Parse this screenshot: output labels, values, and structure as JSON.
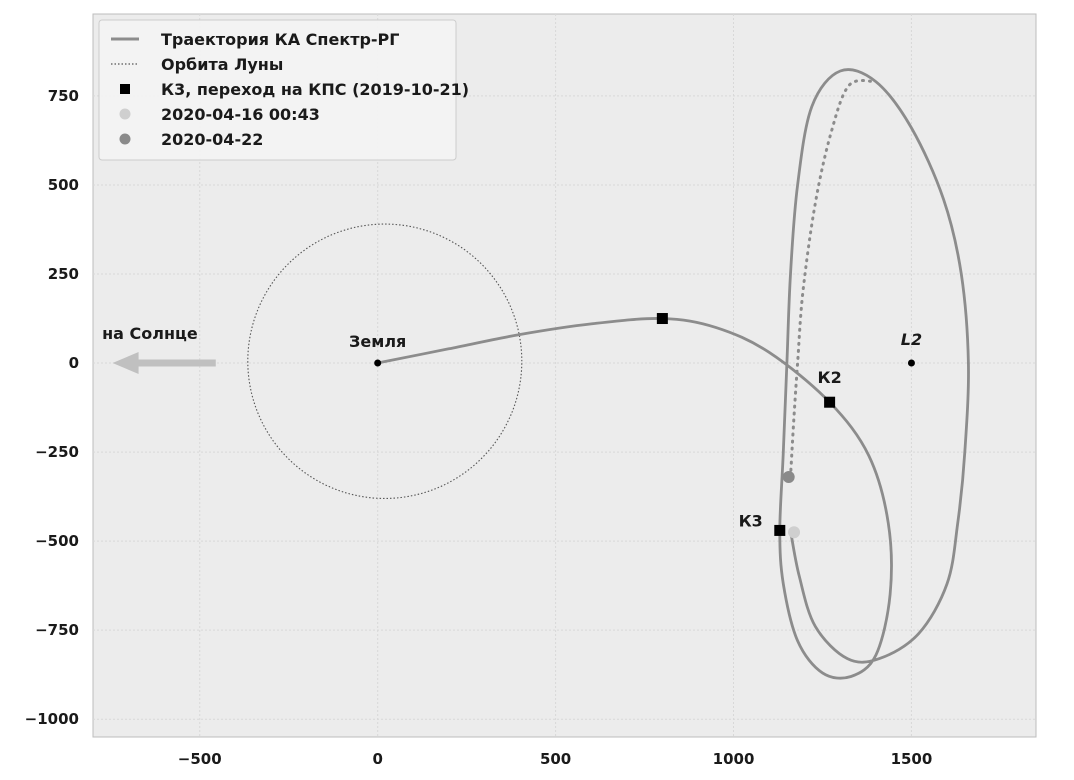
{
  "chart_data": {
    "type": "line",
    "xlim": [
      -800,
      1850
    ],
    "ylim": [
      -1050,
      980
    ],
    "xticks": [
      -500,
      0,
      500,
      1000,
      1500
    ],
    "yticks": [
      750,
      500,
      250,
      0,
      -250,
      -500,
      -750,
      -1000
    ],
    "xtick_labels": [
      "−500",
      "0",
      "500",
      "1000",
      "1500"
    ],
    "ytick_labels": [
      "750",
      "500",
      "250",
      "0",
      "−250",
      "−500",
      "−750",
      "−1000"
    ],
    "grid": true,
    "legend_position": "top-left",
    "colors": {
      "background": "#ececec",
      "trajectory": "#8c8c8c",
      "moon_orbit": "#555555",
      "arrow": "#c0c0c0",
      "light_point": "#cfcfcf",
      "dark_point": "#8a8a8a",
      "marker": "#000000"
    },
    "legend": [
      {
        "label": "Траектория КА Спектр-РГ",
        "style": "solid-line"
      },
      {
        "label": "Орбита Луны",
        "style": "dotted-line"
      },
      {
        "label": "К3, переход на КПС (2019-10-21)",
        "style": "black-square"
      },
      {
        "label": "2020-04-16 00:43",
        "style": "light-circle"
      },
      {
        "label": "2020-04-22",
        "style": "dark-circle"
      }
    ],
    "moon_orbit": {
      "center": [
        20,
        5
      ],
      "radius": 385
    },
    "trajectory": [
      [
        0,
        0
      ],
      [
        200,
        40
      ],
      [
        400,
        80
      ],
      [
        600,
        110
      ],
      [
        800,
        125
      ],
      [
        950,
        100
      ],
      [
        1100,
        30
      ],
      [
        1270,
        -110
      ],
      [
        1380,
        -260
      ],
      [
        1435,
        -450
      ],
      [
        1440,
        -650
      ],
      [
        1400,
        -820
      ],
      [
        1330,
        -880
      ],
      [
        1250,
        -870
      ],
      [
        1180,
        -780
      ],
      [
        1140,
        -620
      ],
      [
        1130,
        -470
      ],
      [
        1140,
        -250
      ],
      [
        1150,
        0
      ],
      [
        1160,
        250
      ],
      [
        1180,
        500
      ],
      [
        1220,
        720
      ],
      [
        1300,
        820
      ],
      [
        1400,
        790
      ],
      [
        1500,
        660
      ],
      [
        1590,
        460
      ],
      [
        1640,
        250
      ],
      [
        1660,
        0
      ],
      [
        1650,
        -250
      ],
      [
        1630,
        -450
      ],
      [
        1600,
        -620
      ],
      [
        1520,
        -760
      ],
      [
        1410,
        -830
      ],
      [
        1320,
        -830
      ],
      [
        1230,
        -740
      ],
      [
        1185,
        -600
      ],
      [
        1160,
        -470
      ]
    ],
    "dotted_segment": [
      [
        1160,
        -320
      ],
      [
        1170,
        -150
      ],
      [
        1180,
        0
      ],
      [
        1195,
        200
      ],
      [
        1230,
        450
      ],
      [
        1275,
        650
      ],
      [
        1325,
        780
      ],
      [
        1400,
        790
      ]
    ],
    "markers": [
      {
        "x": 800,
        "y": 125
      },
      {
        "x": 1270,
        "y": -110
      },
      {
        "x": 1130,
        "y": -470
      }
    ],
    "light_point": {
      "x": 1170,
      "y": -475
    },
    "dark_point": {
      "x": 1155,
      "y": -320
    },
    "small_points": [
      {
        "x": 0,
        "y": 0
      },
      {
        "x": 1500,
        "y": 0
      }
    ],
    "annotations": {
      "earth": "Земля",
      "sun_direction": "на Солнце",
      "k2": "К2",
      "k3": "К3",
      "l2": "L2"
    }
  }
}
